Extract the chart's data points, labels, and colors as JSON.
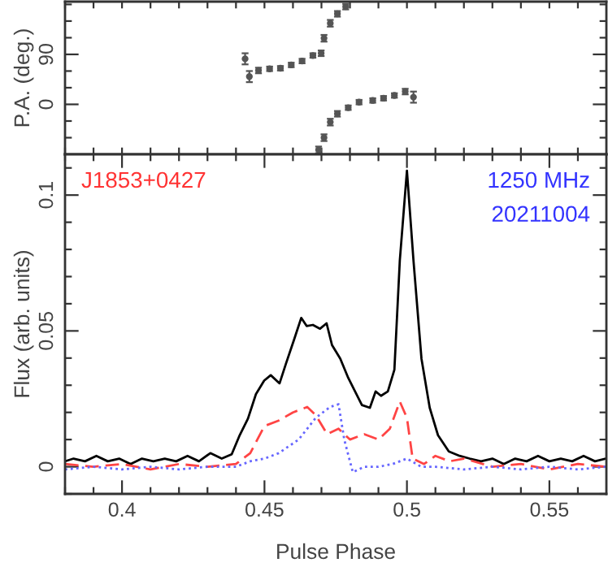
{
  "chart_data": [
    {
      "type": "scatter",
      "ylabel": "P.A. (deg.)",
      "xlim": [
        0.38,
        0.57
      ],
      "ylim": [
        -90,
        185
      ],
      "xticks": [
        {
          "value": 0.38,
          "label": null
        },
        {
          "value": 0.39,
          "label": null
        },
        {
          "value": 0.4,
          "label": null
        },
        {
          "value": 0.41,
          "label": null
        },
        {
          "value": 0.42,
          "label": null
        },
        {
          "value": 0.43,
          "label": null
        },
        {
          "value": 0.44,
          "label": null
        },
        {
          "value": 0.45,
          "label": null
        },
        {
          "value": 0.46,
          "label": null
        },
        {
          "value": 0.47,
          "label": null
        },
        {
          "value": 0.48,
          "label": null
        },
        {
          "value": 0.49,
          "label": null
        },
        {
          "value": 0.5,
          "label": null
        },
        {
          "value": 0.51,
          "label": null
        },
        {
          "value": 0.52,
          "label": null
        },
        {
          "value": 0.53,
          "label": null
        },
        {
          "value": 0.54,
          "label": null
        },
        {
          "value": 0.55,
          "label": null
        },
        {
          "value": 0.56,
          "label": null
        }
      ],
      "yticks": [
        {
          "value": -60,
          "label": null
        },
        {
          "value": -30,
          "label": null
        },
        0,
        {
          "value": 30,
          "label": null
        },
        {
          "value": 60,
          "label": null
        },
        90,
        {
          "value": 120,
          "label": null
        },
        {
          "value": 150,
          "label": null
        },
        {
          "value": 180,
          "label": null
        }
      ],
      "tick_labels": "y",
      "marker": "circle",
      "series": [
        {
          "color": "#555555",
          "x": [
            0.4432,
            0.4447,
            0.4479,
            0.4518,
            0.4556,
            0.4594,
            0.4632,
            0.467,
            0.4699,
            0.4709,
            0.4731,
            0.4756,
            0.4785
          ],
          "values": [
            82,
            50,
            61,
            64,
            65,
            71,
            78,
            88,
            92,
            119,
            146,
            163,
            176
          ],
          "errors": [
            10,
            10,
            5,
            4,
            4,
            4,
            4,
            4,
            5,
            6,
            6,
            5,
            5
          ]
        },
        {
          "color": "#555555",
          "x": [
            0.469,
            0.4709,
            0.4731,
            0.4756,
            0.4794,
            0.4832,
            0.488,
            0.4918,
            0.4956,
            0.4994,
            0.5023
          ],
          "values": [
            -82,
            -60,
            -32,
            -17,
            -6,
            4,
            7,
            11,
            16,
            23,
            13
          ],
          "errors": [
            6,
            6,
            6,
            5,
            4,
            4,
            4,
            4,
            4,
            5,
            10
          ]
        }
      ]
    },
    {
      "type": "line",
      "xlabel": "Pulse Phase",
      "ylabel": "Flux (arb. units)",
      "xlim": [
        0.38,
        0.57
      ],
      "ylim": [
        -0.01,
        0.115
      ],
      "xticks": [
        {
          "value": 0.38,
          "label": null
        },
        {
          "value": 0.39,
          "label": null
        },
        0.4,
        {
          "value": 0.41,
          "label": null
        },
        {
          "value": 0.42,
          "label": null
        },
        {
          "value": 0.43,
          "label": null
        },
        {
          "value": 0.44,
          "label": null
        },
        0.45,
        {
          "value": 0.46,
          "label": null
        },
        {
          "value": 0.47,
          "label": null
        },
        {
          "value": 0.48,
          "label": null
        },
        {
          "value": 0.49,
          "label": null
        },
        0.5,
        {
          "value": 0.51,
          "label": null
        },
        {
          "value": 0.52,
          "label": null
        },
        {
          "value": 0.53,
          "label": null
        },
        {
          "value": 0.54,
          "label": null
        },
        0.55,
        {
          "value": 0.56,
          "label": null
        }
      ],
      "yticks": [
        {
          "value": -0.01,
          "label": null
        },
        0,
        {
          "value": 0.01,
          "label": null
        },
        {
          "value": 0.02,
          "label": null
        },
        {
          "value": 0.03,
          "label": null
        },
        {
          "value": 0.04,
          "label": null
        },
        0.05,
        {
          "value": 0.06,
          "label": null
        },
        {
          "value": 0.07,
          "label": null
        },
        {
          "value": 0.08,
          "label": null
        },
        {
          "value": 0.09,
          "label": null
        },
        0.1,
        {
          "value": 0.11,
          "label": null
        }
      ],
      "annotations": [
        "J1853+0427",
        "1250 MHz",
        "20211004"
      ],
      "series": [
        {
          "color": "#000000",
          "line_style": "solid",
          "x": [
            0.38,
            0.383,
            0.387,
            0.391,
            0.395,
            0.399,
            0.403,
            0.407,
            0.411,
            0.415,
            0.419,
            0.423,
            0.427,
            0.431,
            0.435,
            0.4385,
            0.4413,
            0.4442,
            0.447,
            0.4499,
            0.4522,
            0.4553,
            0.4575,
            0.4604,
            0.4629,
            0.4648,
            0.467,
            0.4695,
            0.4718,
            0.4737,
            0.4766,
            0.4794,
            0.4823,
            0.4842,
            0.487,
            0.489,
            0.4909,
            0.4933,
            0.4956,
            0.4975,
            0.5,
            0.5023,
            0.5051,
            0.508,
            0.5109,
            0.5147,
            0.5185,
            0.522,
            0.526,
            0.53,
            0.534,
            0.538,
            0.542,
            0.546,
            0.55,
            0.554,
            0.558,
            0.562,
            0.566,
            0.5699
          ],
          "values": [
            0.002,
            0.003,
            0.002,
            0.004,
            0.002,
            0.003,
            0.001,
            0.003,
            0.002,
            0.003,
            0.002,
            0.004,
            0.002,
            0.005,
            0.003,
            0.0046,
            0.0116,
            0.0177,
            0.0267,
            0.0317,
            0.0337,
            0.0307,
            0.0378,
            0.0468,
            0.0548,
            0.0518,
            0.0522,
            0.0508,
            0.0528,
            0.0448,
            0.0398,
            0.0327,
            0.0267,
            0.0227,
            0.0217,
            0.0277,
            0.0261,
            0.0277,
            0.0357,
            0.0759,
            0.109,
            0.0759,
            0.0398,
            0.0217,
            0.0116,
            0.0056,
            0.004,
            0.003,
            0.002,
            0.003,
            0.001,
            0.003,
            0.002,
            0.004,
            0.002,
            0.003,
            0.002,
            0.004,
            0.002,
            0.003
          ]
        },
        {
          "color": "#ff4444",
          "line_style": "dashed",
          "x": [
            0.38,
            0.39,
            0.4,
            0.41,
            0.42,
            0.43,
            0.44,
            0.445,
            0.45,
            0.455,
            0.46,
            0.465,
            0.468,
            0.472,
            0.476,
            0.48,
            0.485,
            0.49,
            0.494,
            0.4975,
            0.5,
            0.502,
            0.506,
            0.51,
            0.515,
            0.52,
            0.53,
            0.54,
            0.55,
            0.56,
            0.5699
          ],
          "values": [
            0.001,
            0.0,
            0.001,
            -0.001,
            0.001,
            0.0,
            0.001,
            0.005,
            0.015,
            0.017,
            0.02,
            0.022,
            0.019,
            0.012,
            0.014,
            0.01,
            0.012,
            0.01,
            0.014,
            0.024,
            0.018,
            0.003,
            0.001,
            0.004,
            0.002,
            0.003,
            0.0,
            0.001,
            -0.001,
            0.001,
            0.0
          ]
        },
        {
          "color": "#6666ff",
          "line_style": "dotted",
          "x": [
            0.38,
            0.39,
            0.4,
            0.41,
            0.42,
            0.43,
            0.44,
            0.445,
            0.45,
            0.455,
            0.462,
            0.468,
            0.473,
            0.476,
            0.478,
            0.481,
            0.485,
            0.49,
            0.495,
            0.5,
            0.505,
            0.51,
            0.52,
            0.53,
            0.54,
            0.55,
            0.56,
            0.5699
          ],
          "values": [
            -0.001,
            0.0,
            -0.001,
            0.0,
            -0.001,
            0.0,
            0.0,
            0.002,
            0.003,
            0.005,
            0.01,
            0.018,
            0.022,
            0.023,
            0.01,
            -0.002,
            0.0,
            0.0,
            0.001,
            0.003,
            0.0,
            0.0,
            -0.001,
            0.0,
            -0.001,
            0.0,
            -0.001,
            0.0
          ]
        }
      ]
    }
  ]
}
